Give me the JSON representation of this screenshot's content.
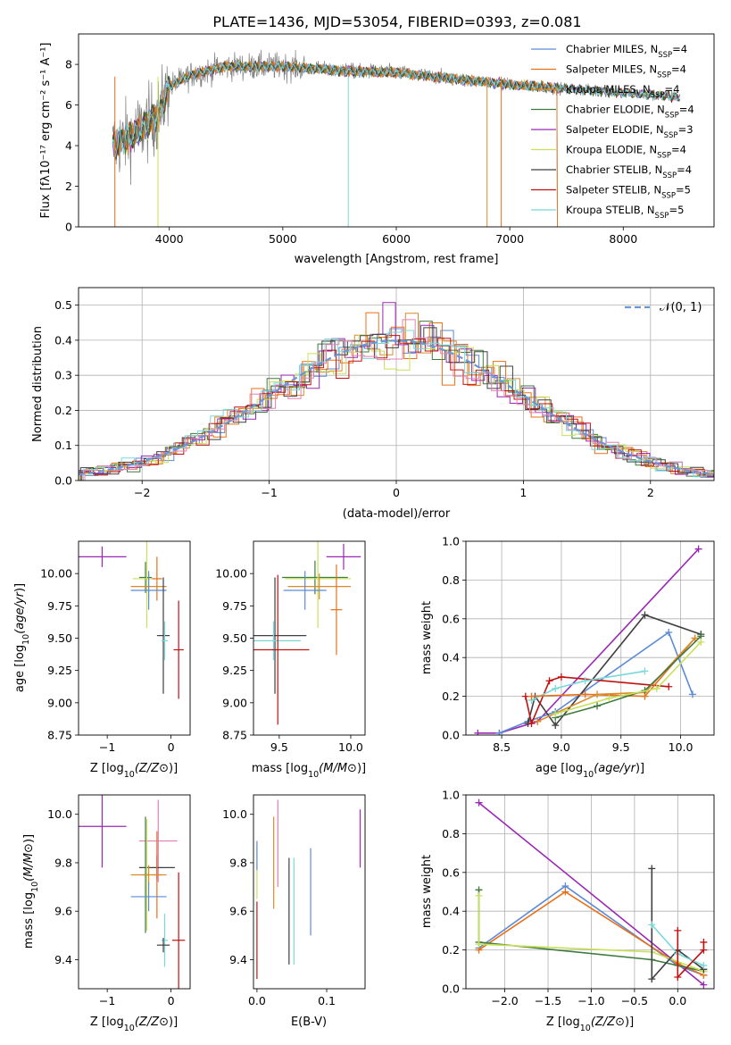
{
  "figure": {
    "title": "PLATE=1436, MJD=53054, FIBERID=0393, z=0.081",
    "colors": {
      "Chabrier MILES": "#5b8ad6",
      "Salpeter MILES": "#e8701a",
      "Kroupa MILES": "#d98a2b",
      "Chabrier ELODIE": "#3f7a3f",
      "Salpeter ELODIE": "#9a28b4",
      "Kroupa ELODIE": "#c8e05a",
      "Chabrier STELIB": "#404040",
      "Salpeter STELIB": "#c01010",
      "Kroupa STELIB": "#7ad8d8"
    },
    "extra_colors": {
      "pink": "#e67fb2",
      "gaussian": "#6a96d8",
      "data": "#808080",
      "grid": "#b0b0b0"
    }
  },
  "chart_data": [
    {
      "id": "spectrum",
      "type": "line",
      "xlabel": "wavelength [Angstrom, rest frame]",
      "ylabel": "Flux [fλ10⁻¹⁷ erg cm⁻² s⁻¹ A⁻¹]",
      "xlim": [
        3200,
        8800
      ],
      "ylim": [
        0,
        9.5
      ],
      "xticks": [
        4000,
        5000,
        6000,
        7000,
        8000
      ],
      "yticks": [
        0,
        2,
        4,
        6,
        8
      ],
      "grid": false,
      "legend_placement": "upper-right",
      "legend": [
        {
          "text": "Chabrier MILES, N",
          "sub": "SSP",
          "tail": "=4",
          "key": "Chabrier MILES"
        },
        {
          "text": "Salpeter MILES, N",
          "sub": "SSP",
          "tail": "=4",
          "key": "Salpeter MILES"
        },
        {
          "text": "Kroupa MILES, N",
          "sub": "SSP",
          "tail": "=4",
          "key": "Kroupa MILES"
        },
        {
          "text": "Chabrier ELODIE, N",
          "sub": "SSP",
          "tail": "=4",
          "key": "Chabrier ELODIE"
        },
        {
          "text": "Salpeter ELODIE, N",
          "sub": "SSP",
          "tail": "=3",
          "key": "Salpeter ELODIE"
        },
        {
          "text": "Kroupa ELODIE, N",
          "sub": "SSP",
          "tail": "=4",
          "key": "Kroupa ELODIE"
        },
        {
          "text": "Chabrier STELIB, N",
          "sub": "SSP",
          "tail": "=4",
          "key": "Chabrier STELIB"
        },
        {
          "text": "Salpeter STELIB, N",
          "sub": "SSP",
          "tail": "=5",
          "key": "Salpeter STELIB"
        },
        {
          "text": "Kroupa STELIB, N",
          "sub": "SSP",
          "tail": "=5",
          "key": "Kroupa STELIB"
        }
      ],
      "continuum": {
        "x": [
          3500,
          3700,
          3900,
          4000,
          4200,
          4500,
          5000,
          5500,
          6000,
          6500,
          7000,
          7500,
          8000,
          8500
        ],
        "y": [
          4.0,
          4.6,
          5.5,
          6.9,
          7.5,
          7.9,
          7.9,
          7.7,
          7.6,
          7.3,
          7.0,
          6.8,
          6.6,
          6.4
        ]
      }
    },
    {
      "id": "residuals",
      "type": "histogram",
      "xlabel": "(data-model)/error",
      "ylabel": "Normed distribution",
      "xlim": [
        -2.5,
        2.5
      ],
      "ylim": [
        0,
        0.55
      ],
      "xticks": [
        -2,
        -1,
        0,
        1,
        2
      ],
      "yticks": [
        0.0,
        0.1,
        0.2,
        0.3,
        0.4,
        0.5
      ],
      "grid": true,
      "legend_placement": "upper-right",
      "gaussian_label": "𝒩(0, 1)"
    },
    {
      "id": "age-vs-Z",
      "type": "scatter",
      "xlabel": "Z [log10(Z/Z⊙)]",
      "ylabel": "age  [log10(age/yr)]",
      "xlim": [
        -1.45,
        0.3
      ],
      "ylim": [
        8.75,
        10.25
      ],
      "xticks": [
        -1,
        0
      ],
      "yticks": [
        8.75,
        9.0,
        9.25,
        9.5,
        9.75,
        10.0
      ],
      "points": [
        {
          "model": "Salpeter ELODIE",
          "x": -1.08,
          "y": 10.13,
          "xerr": 0.38,
          "yerr": 0.08
        },
        {
          "model": "Chabrier ELODIE",
          "x": -0.4,
          "y": 9.97,
          "xerr": 0.1,
          "yerr": 0.12
        },
        {
          "model": "Kroupa ELODIE",
          "x": -0.38,
          "y": 9.96,
          "xerr": 0.22,
          "yerr": 0.38
        },
        {
          "model": "Salpeter MILES",
          "x": -0.22,
          "y": 9.96,
          "xerr": 0.08,
          "yerr": 0.17
        },
        {
          "model": "Kroupa MILES",
          "x": -0.35,
          "y": 9.9,
          "xerr": 0.28,
          "yerr": 0.1
        },
        {
          "model": "Chabrier MILES",
          "x": -0.35,
          "y": 9.87,
          "xerr": 0.28,
          "yerr": 0.15
        },
        {
          "model": "Chabrier STELIB",
          "x": -0.12,
          "y": 9.52,
          "xerr": 0.1,
          "yerr": 0.45
        },
        {
          "model": "Kroupa STELIB",
          "x": -0.1,
          "y": 9.48,
          "xerr": 0.05,
          "yerr": 0.15
        },
        {
          "model": "Salpeter STELIB",
          "x": 0.12,
          "y": 9.41,
          "xerr": 0.08,
          "yerr": 0.38
        }
      ]
    },
    {
      "id": "age-vs-mass",
      "type": "scatter",
      "xlabel": "mass [log10(M/M⊙)]",
      "xlim": [
        9.32,
        10.1
      ],
      "ylim": [
        8.75,
        10.25
      ],
      "xticks": [
        9.5,
        10.0
      ],
      "yticks": [
        8.75,
        9.0,
        9.25,
        9.5,
        9.75,
        10.0
      ],
      "points": [
        {
          "model": "Salpeter ELODIE",
          "x": 9.95,
          "y": 10.13,
          "xerr": 0.12,
          "yerr": 0.1
        },
        {
          "model": "Chabrier ELODIE",
          "x": 9.75,
          "y": 9.97,
          "xerr": 0.23,
          "yerr": 0.13
        },
        {
          "model": "Kroupa ELODIE",
          "x": 9.77,
          "y": 9.96,
          "xerr": 0.23,
          "yerr": 0.38
        },
        {
          "model": "Kroupa MILES",
          "x": 9.78,
          "y": 9.9,
          "xerr": 0.22,
          "yerr": 0.1
        },
        {
          "model": "Chabrier MILES",
          "x": 9.68,
          "y": 9.87,
          "xerr": 0.15,
          "yerr": 0.15
        },
        {
          "model": "Chabrier STELIB",
          "x": 9.47,
          "y": 9.52,
          "xerr": 0.22,
          "yerr": 0.45
        },
        {
          "model": "Kroupa STELIB",
          "x": 9.46,
          "y": 9.48,
          "xerr": 0.19,
          "yerr": 0.15
        },
        {
          "model": "Salpeter STELIB",
          "x": 9.49,
          "y": 9.41,
          "xerr": 0.22,
          "yerr": 0.58
        },
        {
          "model": "Salpeter MILES",
          "x": 9.9,
          "y": 9.72,
          "xerr": 0.04,
          "yerr": 0.35
        }
      ]
    },
    {
      "id": "weight-vs-age",
      "type": "line",
      "xlabel": "age  [log10(age/yr)]",
      "ylabel": "mass weight",
      "xlim": [
        8.2,
        10.28
      ],
      "ylim": [
        0,
        1.0
      ],
      "xticks": [
        8.5,
        9.0,
        9.5,
        10.0
      ],
      "yticks": [
        0.0,
        0.2,
        0.4,
        0.6,
        0.8,
        1.0
      ],
      "grid": true,
      "series": [
        {
          "model": "Salpeter ELODIE",
          "x": [
            8.3,
            8.48,
            8.8,
            10.15
          ],
          "y": [
            0.01,
            0.01,
            0.07,
            0.96
          ]
        },
        {
          "model": "Chabrier MILES",
          "x": [
            8.48,
            8.72,
            8.95,
            9.9,
            10.1
          ],
          "y": [
            0.01,
            0.07,
            0.12,
            0.53,
            0.21
          ]
        },
        {
          "model": "Chabrier STELIB",
          "x": [
            8.72,
            8.78,
            8.95,
            9.7,
            10.17
          ],
          "y": [
            0.06,
            0.2,
            0.05,
            0.62,
            0.52
          ]
        },
        {
          "model": "Salpeter STELIB",
          "x": [
            8.7,
            8.75,
            8.9,
            9.0,
            9.9
          ],
          "y": [
            0.2,
            0.06,
            0.28,
            0.3,
            0.25
          ]
        },
        {
          "model": "Kroupa STELIB",
          "x": [
            8.75,
            8.95,
            9.2,
            9.7
          ],
          "y": [
            0.18,
            0.24,
            0.28,
            0.33
          ]
        },
        {
          "model": "Salpeter MILES",
          "x": [
            8.75,
            9.2,
            9.7,
            10.12
          ],
          "y": [
            0.2,
            0.21,
            0.2,
            0.5
          ]
        },
        {
          "model": "Kroupa MILES",
          "x": [
            8.8,
            9.3,
            9.7,
            10.12
          ],
          "y": [
            0.07,
            0.21,
            0.22,
            0.5
          ]
        },
        {
          "model": "Chabrier ELODIE",
          "x": [
            8.95,
            9.3,
            9.7,
            10.17
          ],
          "y": [
            0.09,
            0.15,
            0.23,
            0.51
          ]
        },
        {
          "model": "Kroupa ELODIE",
          "x": [
            8.95,
            9.4,
            9.8,
            10.17
          ],
          "y": [
            0.11,
            0.19,
            0.24,
            0.48
          ]
        }
      ]
    },
    {
      "id": "mass-vs-Z",
      "type": "scatter",
      "xlabel": "Z [log10(Z/Z⊙)]",
      "ylabel": "mass [log10(M/M⊙)]",
      "xlim": [
        -1.45,
        0.3
      ],
      "ylim": [
        9.28,
        10.08
      ],
      "xticks": [
        -1,
        0
      ],
      "yticks": [
        9.4,
        9.6,
        9.8,
        10.0
      ],
      "points": [
        {
          "model": "Salpeter ELODIE",
          "x": -1.08,
          "y": 9.95,
          "xerr": 0.38,
          "yerr": 0.17
        },
        {
          "model": "pink",
          "x": -0.2,
          "y": 9.89,
          "xerr": 0.3,
          "yerr": 0.17
        },
        {
          "model": "Chabrier STELIB",
          "x": -0.22,
          "y": 9.78,
          "xerr": 0.28,
          "yerr": 0.05
        },
        {
          "model": "Kroupa ELODIE",
          "x": -0.38,
          "y": 9.75,
          "xerr": 0.05,
          "yerr": 0.23
        },
        {
          "model": "Chabrier ELODIE",
          "x": -0.4,
          "y": 9.75,
          "xerr": 0.05,
          "yerr": 0.24
        },
        {
          "model": "Salpeter MILES",
          "x": -0.22,
          "y": 9.75,
          "xerr": 0.08,
          "yerr": 0.18
        },
        {
          "model": "Kroupa MILES",
          "x": -0.35,
          "y": 9.75,
          "xerr": 0.28,
          "yerr": 0.04
        },
        {
          "model": "Chabrier MILES",
          "x": -0.35,
          "y": 9.66,
          "xerr": 0.28,
          "yerr": 0.06
        },
        {
          "model": "Kroupa STELIB",
          "x": -0.1,
          "y": 9.48,
          "xerr": 0.05,
          "yerr": 0.11
        },
        {
          "model": "Salpeter STELIB",
          "x": 0.12,
          "y": 9.48,
          "xerr": 0.1,
          "yerr": 0.28
        },
        {
          "model": "Chabrier STELIB",
          "x": -0.12,
          "y": 9.46,
          "xerr": 0.1,
          "yerr": 0.03
        }
      ]
    },
    {
      "id": "mass-vs-EBV",
      "type": "scatter",
      "xlabel": "E(B-V)",
      "xlim": [
        -0.005,
        0.155
      ],
      "ylim": [
        9.28,
        10.08
      ],
      "xticks": [
        0.0,
        0.1
      ],
      "yticks": [
        9.4,
        9.6,
        9.8,
        10.0
      ],
      "points": [
        {
          "model": "Salpeter STELIB",
          "x": 0.0,
          "y": 9.48,
          "yerr": 0.16
        },
        {
          "model": "Kroupa ELODIE",
          "x": 0.0,
          "y": 9.76,
          "yerr": 0.11
        },
        {
          "model": "Chabrier MILES",
          "x": 0.0,
          "y": 9.83,
          "yerr": 0.06
        },
        {
          "model": "Kroupa MILES",
          "x": 0.024,
          "y": 9.8,
          "yerr": 0.19
        },
        {
          "model": "pink",
          "x": 0.03,
          "y": 9.88,
          "yerr": 0.18
        },
        {
          "model": "Chabrier STELIB",
          "x": 0.046,
          "y": 9.6,
          "yerr": 0.22
        },
        {
          "model": "Kroupa STELIB",
          "x": 0.053,
          "y": 9.6,
          "yerr": 0.22
        },
        {
          "model": "Chabrier MILES",
          "x": 0.077,
          "y": 9.68,
          "yerr": 0.18
        },
        {
          "model": "Salpeter ELODIE",
          "x": 0.148,
          "y": 9.9,
          "yerr": 0.12
        }
      ]
    },
    {
      "id": "weight-vs-Z",
      "type": "line",
      "xlabel": "Z [log10(Z/Z⊙)]",
      "ylabel": "mass weight",
      "xlim": [
        -2.45,
        0.42
      ],
      "ylim": [
        0,
        1.0
      ],
      "xticks": [
        -2.0,
        -1.5,
        -1.0,
        -0.5,
        0.0
      ],
      "yticks": [
        0.0,
        0.2,
        0.4,
        0.6,
        0.8,
        1.0
      ],
      "grid": true,
      "series": [
        {
          "model": "Salpeter ELODIE",
          "x": [
            -2.3,
            0.3
          ],
          "y": [
            0.96,
            0.02
          ]
        },
        {
          "model": "Chabrier MILES",
          "x": [
            -2.3,
            -1.3,
            0.0,
            0.3
          ],
          "y": [
            0.21,
            0.53,
            0.12,
            0.07
          ]
        },
        {
          "model": "Salpeter MILES",
          "x": [
            -2.3,
            -1.3,
            0.0,
            0.3
          ],
          "y": [
            0.2,
            0.5,
            0.13,
            0.07
          ]
        },
        {
          "model": "Chabrier ELODIE",
          "x": [
            -2.3,
            -2.3,
            -0.3,
            0.3
          ],
          "y": [
            0.51,
            0.24,
            0.15,
            0.09
          ]
        },
        {
          "model": "Kroupa ELODIE",
          "x": [
            -2.3,
            -2.3,
            -0.3,
            0.3
          ],
          "y": [
            0.48,
            0.23,
            0.19,
            0.09
          ]
        },
        {
          "model": "Chabrier STELIB",
          "x": [
            -0.3,
            -0.3,
            0.0,
            0.3
          ],
          "y": [
            0.62,
            0.05,
            0.2,
            0.1
          ]
        },
        {
          "model": "Kroupa STELIB",
          "x": [
            -0.3,
            0.0,
            0.3
          ],
          "y": [
            0.33,
            0.18,
            0.12
          ]
        },
        {
          "model": "Salpeter STELIB",
          "x": [
            0.0,
            0.0,
            0.3,
            0.3
          ],
          "y": [
            0.3,
            0.06,
            0.2,
            0.24
          ]
        }
      ]
    }
  ]
}
